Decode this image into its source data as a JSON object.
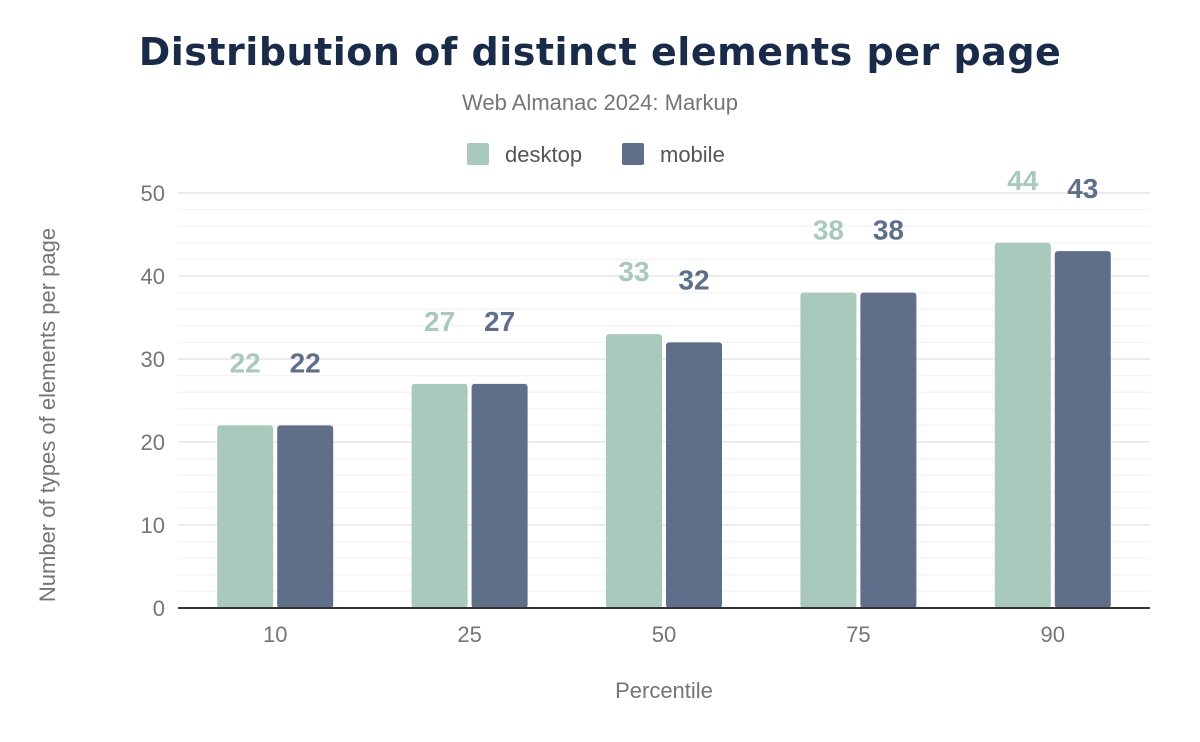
{
  "chart_data": {
    "type": "bar",
    "title": "Distribution of distinct elements per page",
    "subtitle": "Web Almanac 2024: Markup",
    "xlabel": "Percentile",
    "ylabel": "Number of types of elements per page",
    "categories": [
      "10",
      "25",
      "50",
      "75",
      "90"
    ],
    "series": [
      {
        "name": "desktop",
        "color": "#a8c9bb",
        "values": [
          22,
          27,
          33,
          38,
          44
        ]
      },
      {
        "name": "mobile",
        "color": "#5f6f8a",
        "values": [
          22,
          27,
          32,
          38,
          43
        ]
      }
    ],
    "ylim": [
      0,
      50
    ],
    "yticks": [
      0,
      10,
      20,
      30,
      40,
      50
    ],
    "grid": true,
    "minor_grid_step": 2,
    "legend": "top-center",
    "data_labels": true
  }
}
